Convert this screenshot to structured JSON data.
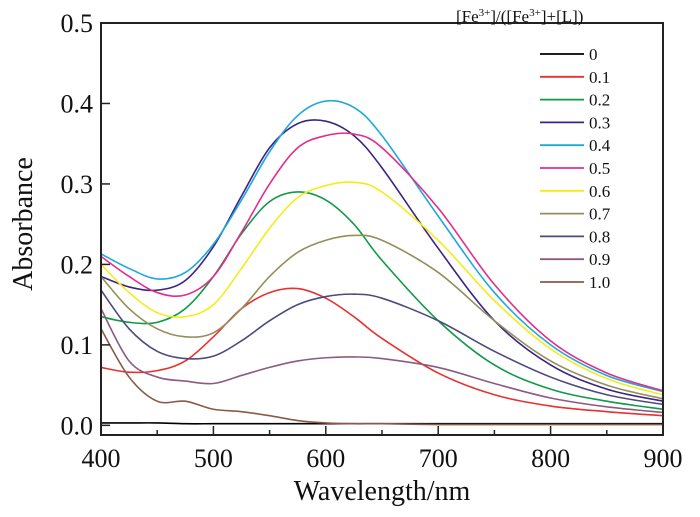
{
  "chart_data": {
    "type": "line",
    "title": "",
    "xlabel": "Wavelength/nm",
    "ylabel": "Absorbance",
    "xlim": [
      400,
      900
    ],
    "ylim": [
      -0.012,
      0.5
    ],
    "xticks": [
      400,
      500,
      600,
      700,
      800,
      900
    ],
    "xtick_labels": [
      "400",
      "500",
      "600",
      "700",
      "800",
      "900"
    ],
    "xminor": [
      450,
      550,
      650,
      750,
      850
    ],
    "yticks": [
      0.0,
      0.1,
      0.2,
      0.3,
      0.4,
      0.5
    ],
    "ytick_labels": [
      "0.0",
      "0.1",
      "0.2",
      "0.3",
      "0.4",
      "0.5"
    ],
    "grid": false,
    "legend": {
      "title_parts": [
        "[Fe",
        "3+",
        "]/([Fe",
        "3+",
        "]+[L])"
      ],
      "placement": "top-right"
    },
    "x": [
      400,
      425,
      450,
      475,
      500,
      525,
      550,
      575,
      600,
      625,
      650,
      700,
      750,
      800,
      850,
      900
    ],
    "series": [
      {
        "name": "0",
        "color": "#000000",
        "values": [
          0.003,
          0.003,
          0.003,
          0.002,
          0.002,
          0.002,
          0.002,
          0.002,
          0.002,
          0.002,
          0.002,
          0.002,
          0.002,
          0.002,
          0.002,
          0.002
        ]
      },
      {
        "name": "0.1",
        "color": "#e8312f",
        "values": [
          0.072,
          0.066,
          0.068,
          0.08,
          0.11,
          0.145,
          0.165,
          0.17,
          0.158,
          0.135,
          0.108,
          0.065,
          0.038,
          0.024,
          0.017,
          0.012
        ]
      },
      {
        "name": "0.2",
        "color": "#0f9a48",
        "values": [
          0.135,
          0.128,
          0.128,
          0.145,
          0.185,
          0.238,
          0.278,
          0.29,
          0.28,
          0.25,
          0.205,
          0.13,
          0.075,
          0.045,
          0.03,
          0.02
        ]
      },
      {
        "name": "0.3",
        "color": "#3b2484",
        "values": [
          0.185,
          0.172,
          0.168,
          0.18,
          0.222,
          0.285,
          0.345,
          0.375,
          0.378,
          0.36,
          0.32,
          0.22,
          0.13,
          0.075,
          0.045,
          0.03
        ]
      },
      {
        "name": "0.4",
        "color": "#1da9dc",
        "values": [
          0.213,
          0.195,
          0.182,
          0.19,
          0.225,
          0.28,
          0.34,
          0.385,
          0.403,
          0.395,
          0.36,
          0.26,
          0.165,
          0.1,
          0.062,
          0.042
        ]
      },
      {
        "name": "0.5",
        "color": "#e42c8c",
        "values": [
          0.21,
          0.185,
          0.165,
          0.162,
          0.185,
          0.24,
          0.3,
          0.345,
          0.36,
          0.362,
          0.345,
          0.27,
          0.175,
          0.105,
          0.065,
          0.043
        ]
      },
      {
        "name": "0.6",
        "color": "#f5ec17",
        "values": [
          0.2,
          0.165,
          0.14,
          0.135,
          0.15,
          0.195,
          0.245,
          0.283,
          0.298,
          0.302,
          0.29,
          0.23,
          0.155,
          0.095,
          0.058,
          0.038
        ]
      },
      {
        "name": "0.7",
        "color": "#948f5a",
        "values": [
          0.185,
          0.145,
          0.12,
          0.11,
          0.115,
          0.145,
          0.185,
          0.215,
          0.23,
          0.236,
          0.23,
          0.19,
          0.13,
          0.08,
          0.05,
          0.033
        ]
      },
      {
        "name": "0.8",
        "color": "#4c4a7e",
        "values": [
          0.168,
          0.12,
          0.092,
          0.083,
          0.086,
          0.105,
          0.13,
          0.15,
          0.16,
          0.163,
          0.158,
          0.13,
          0.092,
          0.06,
          0.038,
          0.026
        ]
      },
      {
        "name": "0.9",
        "color": "#8c5b7f",
        "values": [
          0.145,
          0.08,
          0.06,
          0.055,
          0.052,
          0.062,
          0.072,
          0.08,
          0.084,
          0.085,
          0.083,
          0.072,
          0.052,
          0.034,
          0.023,
          0.016
        ]
      },
      {
        "name": "1.0",
        "color": "#8a5a46",
        "values": [
          0.12,
          0.06,
          0.03,
          0.03,
          0.02,
          0.017,
          0.012,
          0.006,
          0.003,
          0.002,
          0.002,
          0.001,
          0.001,
          0.001,
          0.001,
          0.001
        ]
      }
    ]
  }
}
